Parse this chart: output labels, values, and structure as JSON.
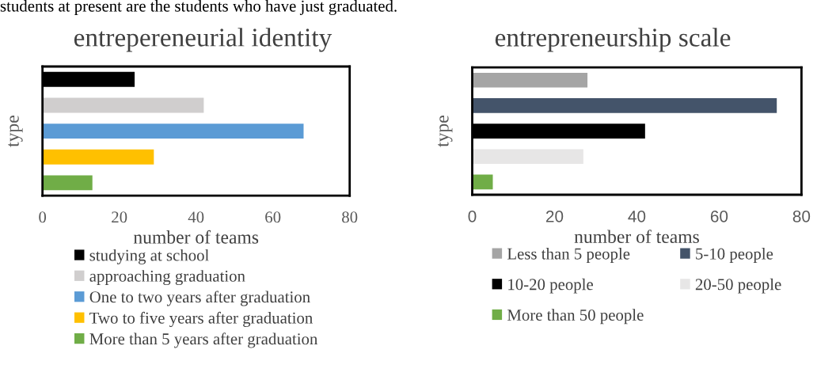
{
  "chart_data": [
    {
      "type": "bar",
      "orientation": "horizontal",
      "title": "entrepereneurial identity",
      "xlabel": "number of teams",
      "ylabel": "type",
      "categories": [
        null
      ],
      "series": [
        {
          "name": "studying at school",
          "color": "#000000",
          "values": [
            24
          ]
        },
        {
          "name": "approaching graduation",
          "color": "#d0cece",
          "values": [
            42
          ]
        },
        {
          "name": "One to two years after graduation",
          "color": "#5b9bd5",
          "values": [
            68
          ]
        },
        {
          "name": "Two to five years after graduation",
          "color": "#ffc000",
          "values": [
            29
          ]
        },
        {
          "name": "More than 5 years after graduation",
          "color": "#70ad47",
          "values": [
            13
          ]
        }
      ],
      "xlim": [
        0,
        80
      ],
      "xticks": [
        0,
        20,
        40,
        60,
        80
      ],
      "grid": false,
      "legend": "bottom",
      "annotations": [
        "students at present are the students who have just graduated."
      ]
    },
    {
      "type": "bar",
      "orientation": "horizontal",
      "title": "entrepreneurship scale",
      "xlabel": "number of teams",
      "ylabel": "type",
      "categories": [
        null
      ],
      "series": [
        {
          "name": "Less than 5 people",
          "color": "#a5a5a5",
          "values": [
            28
          ]
        },
        {
          "name": "5-10 people",
          "color": "#44546a",
          "values": [
            74
          ]
        },
        {
          "name": "10-20 people",
          "color": "#000000",
          "values": [
            42
          ]
        },
        {
          "name": "20-50 people",
          "color": "#e7e6e6",
          "values": [
            27
          ]
        },
        {
          "name": "More than 50 people",
          "color": "#70ad47",
          "values": [
            5
          ]
        }
      ],
      "xlim": [
        0,
        80
      ],
      "xticks": [
        0,
        20,
        40,
        60,
        80
      ],
      "grid": false,
      "legend": "bottom"
    }
  ]
}
